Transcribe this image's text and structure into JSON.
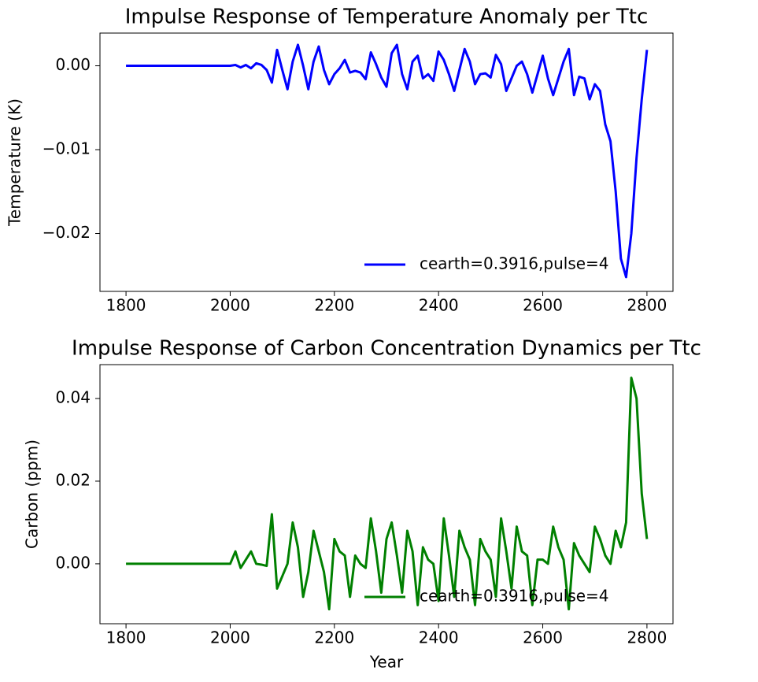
{
  "chart_data": [
    {
      "type": "line",
      "title": "Impulse Response of Temperature Anomaly per Ttc",
      "ylabel": "Temperature (K)",
      "x": [
        1800,
        1900,
        2000,
        2010,
        2020,
        2030,
        2040,
        2050,
        2060,
        2070,
        2080,
        2090,
        2100,
        2110,
        2120,
        2130,
        2140,
        2150,
        2160,
        2170,
        2180,
        2190,
        2200,
        2210,
        2220,
        2230,
        2240,
        2250,
        2260,
        2270,
        2280,
        2290,
        2300,
        2310,
        2320,
        2330,
        2340,
        2350,
        2360,
        2370,
        2380,
        2390,
        2400,
        2410,
        2420,
        2430,
        2440,
        2450,
        2460,
        2470,
        2480,
        2490,
        2500,
        2510,
        2520,
        2530,
        2540,
        2550,
        2560,
        2570,
        2580,
        2590,
        2600,
        2610,
        2620,
        2630,
        2640,
        2650,
        2660,
        2670,
        2680,
        2690,
        2700,
        2710,
        2720,
        2730,
        2740,
        2750,
        2760,
        2770,
        2780,
        2790,
        2800
      ],
      "series": [
        {
          "name": "cearth=0.3916,pulse=4",
          "color": "#0000ff",
          "values": [
            0,
            0,
            0,
            0.0001,
            -0.0002,
            0.0001,
            -0.0003,
            0.0003,
            0.0001,
            -0.0005,
            -0.002,
            0.0019,
            -0.0005,
            -0.0028,
            0.0005,
            0.0025,
            0,
            -0.0028,
            0.0005,
            0.0023,
            -0.0005,
            -0.0022,
            -0.001,
            -0.0003,
            0.0007,
            -0.0008,
            -0.0006,
            -0.0008,
            -0.0016,
            0.0016,
            0.0002,
            -0.0014,
            -0.0025,
            0.0015,
            0.0025,
            -0.001,
            -0.0028,
            0.0005,
            0.0012,
            -0.0015,
            -0.001,
            -0.0018,
            0.0017,
            0.0007,
            -0.001,
            -0.003,
            -0.0005,
            0.002,
            0.0005,
            -0.0022,
            -0.001,
            -0.0009,
            -0.0014,
            0.0013,
            0.0002,
            -0.003,
            -0.0015,
            0,
            0.0005,
            -0.001,
            -0.0032,
            -0.001,
            0.0012,
            -0.0015,
            -0.0035,
            -0.0015,
            0.0005,
            0.002,
            -0.0035,
            -0.0013,
            -0.0015,
            -0.004,
            -0.0022,
            -0.003,
            -0.007,
            -0.009,
            -0.015,
            -0.023,
            -0.0252,
            -0.02,
            -0.011,
            -0.004,
            0.0019
          ]
        }
      ],
      "xlim": [
        1750,
        2850
      ],
      "ylim": [
        -0.0269,
        0.0039
      ],
      "xticks": [
        1800,
        2000,
        2200,
        2400,
        2600,
        2800
      ],
      "yticks": [
        {
          "value": 0,
          "label": "0.00"
        },
        {
          "value": -0.01,
          "label": "−0.01"
        },
        {
          "value": -0.02,
          "label": "−0.02"
        }
      ],
      "legend": "lower right"
    },
    {
      "type": "line",
      "title": "Impulse Response of Carbon Concentration Dynamics per Ttc",
      "ylabel": "Carbon (ppm)",
      "xlabel": "Year",
      "x": [
        1800,
        1900,
        2000,
        2010,
        2020,
        2030,
        2040,
        2050,
        2060,
        2070,
        2080,
        2090,
        2100,
        2110,
        2120,
        2130,
        2140,
        2150,
        2160,
        2170,
        2180,
        2190,
        2200,
        2210,
        2220,
        2230,
        2240,
        2250,
        2260,
        2270,
        2280,
        2290,
        2300,
        2310,
        2320,
        2330,
        2340,
        2350,
        2360,
        2370,
        2380,
        2390,
        2400,
        2410,
        2420,
        2430,
        2440,
        2450,
        2460,
        2470,
        2480,
        2490,
        2500,
        2510,
        2520,
        2530,
        2540,
        2550,
        2560,
        2570,
        2580,
        2590,
        2600,
        2610,
        2620,
        2630,
        2640,
        2650,
        2660,
        2670,
        2680,
        2690,
        2700,
        2710,
        2720,
        2730,
        2740,
        2750,
        2760,
        2770,
        2780,
        2790,
        2800
      ],
      "series": [
        {
          "name": "cearth=0.3916,pulse=4",
          "color": "#008000",
          "values": [
            0,
            0,
            0,
            0.003,
            -0.001,
            0.001,
            0.003,
            0,
            -0.0002,
            -0.0005,
            0.012,
            -0.006,
            -0.003,
            0,
            0.01,
            0.004,
            -0.008,
            -0.002,
            0.008,
            0.003,
            -0.002,
            -0.011,
            0.006,
            0.003,
            0.002,
            -0.008,
            0.002,
            0,
            -0.001,
            0.011,
            0.003,
            -0.007,
            0.006,
            0.01,
            0.002,
            -0.007,
            0.008,
            0.003,
            -0.01,
            0.004,
            0.001,
            0,
            -0.009,
            0.011,
            0.002,
            -0.008,
            0.008,
            0.004,
            0.001,
            -0.01,
            0.006,
            0.003,
            0.001,
            -0.008,
            0.011,
            0.003,
            -0.006,
            0.009,
            0.003,
            0.002,
            -0.01,
            0.001,
            0.001,
            0,
            0.009,
            0.004,
            0.001,
            -0.011,
            0.005,
            0.002,
            0,
            -0.002,
            0.009,
            0.006,
            0.002,
            0,
            0.008,
            0.004,
            0.01,
            0.045,
            0.04,
            0.017,
            0.006
          ]
        }
      ],
      "xlim": [
        1750,
        2850
      ],
      "ylim": [
        -0.0145,
        0.0482
      ],
      "xticks": [
        1800,
        2000,
        2200,
        2400,
        2600,
        2800
      ],
      "yticks": [
        {
          "value": 0,
          "label": "0.00"
        },
        {
          "value": 0.02,
          "label": "0.02"
        },
        {
          "value": 0.04,
          "label": "0.04"
        }
      ],
      "legend": "lower right"
    }
  ]
}
